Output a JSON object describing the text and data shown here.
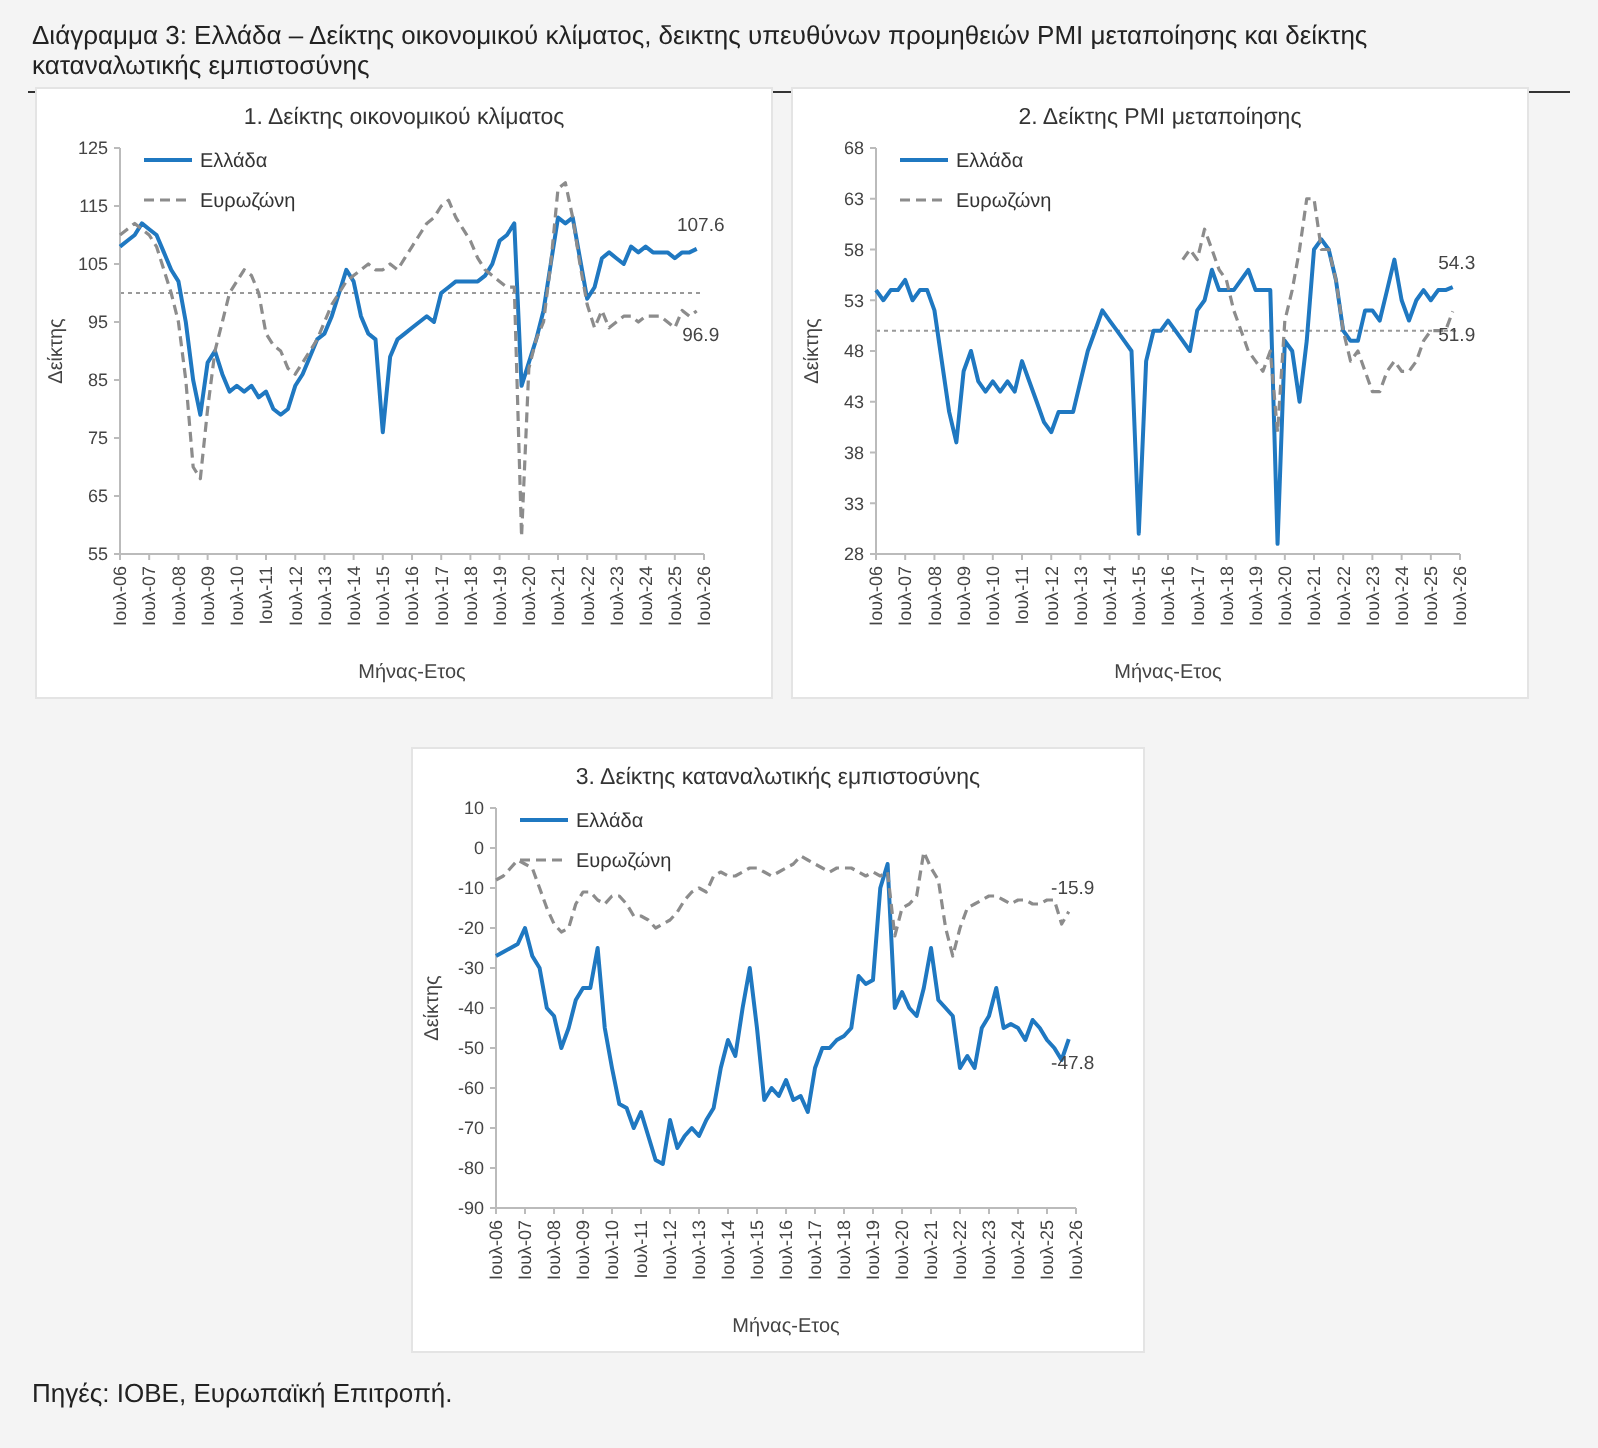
{
  "chart_data": [
    {
      "type": "other",
      "title": "Διάγραμμα 3: Ελλάδα – Δείκτης οικονομικού κλίματος, δεικτης υπευθύνων προμηθειών PMI μεταποίησης και δείκτης καταναλωτικής εμπιστοσύνης",
      "annotations": [
        "Πηγές: ΙΟΒΕ, Ευρωπαϊκή Επιτροπή."
      ]
    },
    {
      "type": "line",
      "title": "1. Δείκτης οικονομικού κλίματος",
      "xlabel": "Μήνας-Ετος",
      "ylabel": "Δείκτης",
      "legend": "top left",
      "grid": false,
      "x": [
        "2006-07",
        "2006-10",
        "2007-01",
        "2007-04",
        "2007-07",
        "2007-10",
        "2008-01",
        "2008-04",
        "2008-07",
        "2008-10",
        "2009-01",
        "2009-04",
        "2009-07",
        "2009-10",
        "2010-01",
        "2010-04",
        "2010-07",
        "2010-10",
        "2011-01",
        "2011-04",
        "2011-07",
        "2011-10",
        "2012-01",
        "2012-04",
        "2012-07",
        "2012-10",
        "2013-01",
        "2013-04",
        "2013-07",
        "2013-10",
        "2014-01",
        "2014-04",
        "2014-07",
        "2014-10",
        "2015-01",
        "2015-04",
        "2015-07",
        "2015-10",
        "2016-01",
        "2016-04",
        "2016-07",
        "2016-10",
        "2017-01",
        "2017-04",
        "2017-07",
        "2017-10",
        "2018-01",
        "2018-04",
        "2018-07",
        "2018-10",
        "2019-01",
        "2019-04",
        "2019-07",
        "2019-10",
        "2020-01",
        "2020-04",
        "2020-07",
        "2020-10",
        "2021-01",
        "2021-04",
        "2021-07",
        "2021-10",
        "2022-01",
        "2022-04",
        "2022-07",
        "2022-10",
        "2023-01",
        "2023-04",
        "2023-07",
        "2023-10",
        "2024-01",
        "2024-04",
        "2024-07",
        "2024-10",
        "2025-01",
        "2025-04",
        "2025-07",
        "2025-10",
        "2026-01",
        "2026-04"
      ],
      "xlim": [
        "2006-07",
        "2026-07"
      ],
      "xticks": [
        {
          "value": "2006-07",
          "label": "Ιουλ-06"
        },
        {
          "value": "2007-07",
          "label": "Ιουλ-07"
        },
        {
          "value": "2008-07",
          "label": "Ιουλ-08"
        },
        {
          "value": "2009-07",
          "label": "Ιουλ-09"
        },
        {
          "value": "2010-07",
          "label": "Ιουλ-10"
        },
        {
          "value": "2011-07",
          "label": "Ιουλ-11"
        },
        {
          "value": "2012-07",
          "label": "Ιουλ-12"
        },
        {
          "value": "2013-07",
          "label": "Ιουλ-13"
        },
        {
          "value": "2014-07",
          "label": "Ιουλ-14"
        },
        {
          "value": "2015-07",
          "label": "Ιουλ-15"
        },
        {
          "value": "2016-07",
          "label": "Ιουλ-16"
        },
        {
          "value": "2017-07",
          "label": "Ιουλ-17"
        },
        {
          "value": "2018-07",
          "label": "Ιουλ-18"
        },
        {
          "value": "2019-07",
          "label": "Ιουλ-19"
        },
        {
          "value": "2020-07",
          "label": "Ιουλ-20"
        },
        {
          "value": "2021-07",
          "label": "Ιουλ-21"
        },
        {
          "value": "2022-07",
          "label": "Ιουλ-22"
        },
        {
          "value": "2023-07",
          "label": "Ιουλ-23"
        },
        {
          "value": "2024-07",
          "label": "Ιουλ-24"
        },
        {
          "value": "2025-07",
          "label": "Ιουλ-25"
        },
        {
          "value": "2026-07",
          "label": "Ιουλ-26"
        }
      ],
      "ylim": [
        55,
        125
      ],
      "yticks": [
        55,
        65,
        75,
        85,
        95,
        105,
        115,
        125
      ],
      "ref_lines": [
        {
          "axis": "y",
          "value": 100,
          "color": "#999999",
          "line_style": "dotted"
        }
      ],
      "series": [
        {
          "name": "Ελλάδα",
          "color": "#1f78c1",
          "line_style": "solid",
          "values": [
            108,
            109,
            110,
            112,
            111,
            110,
            107,
            104,
            102,
            95,
            85,
            79,
            88,
            90,
            86,
            83,
            84,
            83,
            84,
            82,
            83,
            80,
            79,
            80,
            84,
            86,
            89,
            92,
            93,
            96,
            100,
            104,
            102,
            96,
            93,
            92,
            76,
            89,
            92,
            93,
            94,
            95,
            96,
            95,
            100,
            101,
            102,
            102,
            102,
            102,
            103,
            105,
            109,
            110,
            112,
            84,
            88,
            92,
            97,
            105,
            113,
            112,
            113,
            106,
            99,
            101,
            106,
            107,
            106,
            105,
            108,
            107,
            108,
            107,
            107,
            107,
            106,
            107,
            107,
            107.6
          ]
        },
        {
          "name": "Ευρωζώνη",
          "color": "#8c8c8c",
          "line_style": "dashed",
          "values": [
            110,
            111,
            112,
            111,
            110,
            108,
            104,
            100,
            95,
            85,
            70,
            68,
            80,
            90,
            95,
            100,
            102,
            104,
            103,
            100,
            93,
            91,
            90,
            87,
            86,
            88,
            90,
            92,
            95,
            98,
            100,
            102,
            103,
            104,
            105,
            104,
            104,
            105,
            104,
            106,
            108,
            110,
            112,
            113,
            115,
            116,
            113,
            111,
            109,
            106,
            104,
            103,
            102,
            101,
            101,
            58,
            87,
            92,
            95,
            105,
            118,
            119,
            113,
            105,
            98,
            94,
            97,
            94,
            95,
            96,
            96,
            95,
            96,
            96,
            96,
            95,
            94,
            97,
            96,
            96.9
          ]
        }
      ],
      "annotations": [
        {
          "text": "107.6",
          "x": "2026-04",
          "y": 107.6
        },
        {
          "text": "96.9",
          "x": "2026-04",
          "y": 96.9
        }
      ]
    },
    {
      "type": "line",
      "title": "2. Δείκτης PMI μεταποίησης",
      "xlabel": "Μήνας-Ετος",
      "ylabel": "Δείκτης",
      "legend": "top left",
      "grid": false,
      "x": [
        "2006-07",
        "2006-10",
        "2007-01",
        "2007-04",
        "2007-07",
        "2007-10",
        "2008-01",
        "2008-04",
        "2008-07",
        "2008-10",
        "2009-01",
        "2009-04",
        "2009-07",
        "2009-10",
        "2010-01",
        "2010-04",
        "2010-07",
        "2010-10",
        "2011-01",
        "2011-04",
        "2011-07",
        "2011-10",
        "2012-01",
        "2012-04",
        "2012-07",
        "2012-10",
        "2013-01",
        "2013-04",
        "2013-07",
        "2013-10",
        "2014-01",
        "2014-04",
        "2014-07",
        "2014-10",
        "2015-01",
        "2015-04",
        "2015-07",
        "2015-10",
        "2016-01",
        "2016-04",
        "2016-07",
        "2016-10",
        "2017-01",
        "2017-04",
        "2017-07",
        "2017-10",
        "2018-01",
        "2018-04",
        "2018-07",
        "2018-10",
        "2019-01",
        "2019-04",
        "2019-07",
        "2019-10",
        "2020-01",
        "2020-04",
        "2020-07",
        "2020-10",
        "2021-01",
        "2021-04",
        "2021-07",
        "2021-10",
        "2022-01",
        "2022-04",
        "2022-07",
        "2022-10",
        "2023-01",
        "2023-04",
        "2023-07",
        "2023-10",
        "2024-01",
        "2024-04",
        "2024-07",
        "2024-10",
        "2025-01",
        "2025-04",
        "2025-07",
        "2025-10",
        "2026-01",
        "2026-04"
      ],
      "xlim": [
        "2006-07",
        "2026-07"
      ],
      "xticks": [
        {
          "value": "2006-07",
          "label": "Ιουλ-06"
        },
        {
          "value": "2007-07",
          "label": "Ιουλ-07"
        },
        {
          "value": "2008-07",
          "label": "Ιουλ-08"
        },
        {
          "value": "2009-07",
          "label": "Ιουλ-09"
        },
        {
          "value": "2010-07",
          "label": "Ιουλ-10"
        },
        {
          "value": "2011-07",
          "label": "Ιουλ-11"
        },
        {
          "value": "2012-07",
          "label": "Ιουλ-12"
        },
        {
          "value": "2013-07",
          "label": "Ιουλ-13"
        },
        {
          "value": "2014-07",
          "label": "Ιουλ-14"
        },
        {
          "value": "2015-07",
          "label": "Ιουλ-15"
        },
        {
          "value": "2016-07",
          "label": "Ιουλ-16"
        },
        {
          "value": "2017-07",
          "label": "Ιουλ-17"
        },
        {
          "value": "2018-07",
          "label": "Ιουλ-18"
        },
        {
          "value": "2019-07",
          "label": "Ιουλ-19"
        },
        {
          "value": "2020-07",
          "label": "Ιουλ-20"
        },
        {
          "value": "2021-07",
          "label": "Ιουλ-21"
        },
        {
          "value": "2022-07",
          "label": "Ιουλ-22"
        },
        {
          "value": "2023-07",
          "label": "Ιουλ-23"
        },
        {
          "value": "2024-07",
          "label": "Ιουλ-24"
        },
        {
          "value": "2025-07",
          "label": "Ιουλ-25"
        },
        {
          "value": "2026-07",
          "label": "Ιουλ-26"
        }
      ],
      "ylim": [
        28,
        68
      ],
      "yticks": [
        28,
        33,
        38,
        43,
        48,
        53,
        58,
        63,
        68
      ],
      "ref_lines": [
        {
          "axis": "y",
          "value": 50,
          "color": "#999999",
          "line_style": "dotted"
        }
      ],
      "series": [
        {
          "name": "Ελλάδα",
          "color": "#1f78c1",
          "line_style": "solid",
          "values": [
            54,
            53,
            54,
            54,
            55,
            53,
            54,
            54,
            52,
            47,
            42,
            39,
            46,
            48,
            45,
            44,
            45,
            44,
            45,
            44,
            47,
            45,
            43,
            41,
            40,
            42,
            42,
            42,
            45,
            48,
            50,
            52,
            51,
            50,
            49,
            48,
            30,
            47,
            50,
            50,
            51,
            50,
            49,
            48,
            52,
            53,
            56,
            54,
            54,
            54,
            55,
            56,
            54,
            54,
            54,
            29,
            49,
            48,
            43,
            49,
            58,
            59,
            58,
            55,
            50,
            49,
            49,
            52,
            52,
            51,
            54,
            57,
            53,
            51,
            53,
            54,
            53,
            54,
            54,
            54.3
          ]
        },
        {
          "name": "Ευρωζώνη",
          "color": "#8c8c8c",
          "line_style": "dashed",
          "values": [
            null,
            null,
            null,
            null,
            null,
            null,
            null,
            null,
            null,
            null,
            null,
            null,
            null,
            null,
            null,
            null,
            null,
            null,
            null,
            null,
            null,
            null,
            null,
            null,
            null,
            null,
            null,
            null,
            null,
            null,
            null,
            null,
            null,
            null,
            null,
            null,
            null,
            null,
            null,
            null,
            null,
            null,
            57,
            58,
            57,
            60,
            58,
            56,
            55,
            52,
            50,
            48,
            47,
            46,
            48,
            40,
            51,
            54,
            58,
            63,
            63,
            58,
            58,
            55,
            50,
            47,
            48,
            46,
            44,
            44,
            46,
            47,
            46,
            46,
            47,
            49,
            50,
            50,
            50,
            51.9
          ]
        }
      ],
      "annotations": [
        {
          "text": "54.3",
          "x": "2026-04",
          "y": 54.3
        },
        {
          "text": "51.9",
          "x": "2026-04",
          "y": 51.9
        }
      ]
    },
    {
      "type": "line",
      "title": "3. Δείκτης καταναλωτικής εμπιστοσύνης",
      "xlabel": "Μήνας-Ετος",
      "ylabel": "Δείκτης",
      "legend": "top left",
      "grid": false,
      "x": [
        "2006-07",
        "2006-10",
        "2007-01",
        "2007-04",
        "2007-07",
        "2007-10",
        "2008-01",
        "2008-04",
        "2008-07",
        "2008-10",
        "2009-01",
        "2009-04",
        "2009-07",
        "2009-10",
        "2010-01",
        "2010-04",
        "2010-07",
        "2010-10",
        "2011-01",
        "2011-04",
        "2011-07",
        "2011-10",
        "2012-01",
        "2012-04",
        "2012-07",
        "2012-10",
        "2013-01",
        "2013-04",
        "2013-07",
        "2013-10",
        "2014-01",
        "2014-04",
        "2014-07",
        "2014-10",
        "2015-01",
        "2015-04",
        "2015-07",
        "2015-10",
        "2016-01",
        "2016-04",
        "2016-07",
        "2016-10",
        "2017-01",
        "2017-04",
        "2017-07",
        "2017-10",
        "2018-01",
        "2018-04",
        "2018-07",
        "2018-10",
        "2019-01",
        "2019-04",
        "2019-07",
        "2019-10",
        "2020-01",
        "2020-04",
        "2020-07",
        "2020-10",
        "2021-01",
        "2021-04",
        "2021-07",
        "2021-10",
        "2022-01",
        "2022-04",
        "2022-07",
        "2022-10",
        "2023-01",
        "2023-04",
        "2023-07",
        "2023-10",
        "2024-01",
        "2024-04",
        "2024-07",
        "2024-10",
        "2025-01",
        "2025-04",
        "2025-07",
        "2025-10",
        "2026-01",
        "2026-04"
      ],
      "xlim": [
        "2006-07",
        "2026-07"
      ],
      "xticks": [
        {
          "value": "2006-07",
          "label": "Ιουλ-06"
        },
        {
          "value": "2007-07",
          "label": "Ιουλ-07"
        },
        {
          "value": "2008-07",
          "label": "Ιουλ-08"
        },
        {
          "value": "2009-07",
          "label": "Ιουλ-09"
        },
        {
          "value": "2010-07",
          "label": "Ιουλ-10"
        },
        {
          "value": "2011-07",
          "label": "Ιουλ-11"
        },
        {
          "value": "2012-07",
          "label": "Ιουλ-12"
        },
        {
          "value": "2013-07",
          "label": "Ιουλ-13"
        },
        {
          "value": "2014-07",
          "label": "Ιουλ-14"
        },
        {
          "value": "2015-07",
          "label": "Ιουλ-15"
        },
        {
          "value": "2016-07",
          "label": "Ιουλ-16"
        },
        {
          "value": "2017-07",
          "label": "Ιουλ-17"
        },
        {
          "value": "2018-07",
          "label": "Ιουλ-18"
        },
        {
          "value": "2019-07",
          "label": "Ιουλ-19"
        },
        {
          "value": "2020-07",
          "label": "Ιουλ-20"
        },
        {
          "value": "2021-07",
          "label": "Ιουλ-21"
        },
        {
          "value": "2022-07",
          "label": "Ιουλ-22"
        },
        {
          "value": "2023-07",
          "label": "Ιουλ-23"
        },
        {
          "value": "2024-07",
          "label": "Ιουλ-24"
        },
        {
          "value": "2025-07",
          "label": "Ιουλ-25"
        },
        {
          "value": "2026-07",
          "label": "Ιουλ-26"
        }
      ],
      "ylim": [
        -90,
        10
      ],
      "yticks": [
        -90,
        -80,
        -70,
        -60,
        -50,
        -40,
        -30,
        -20,
        -10,
        0,
        10
      ],
      "series": [
        {
          "name": "Ελλάδα",
          "color": "#1f78c1",
          "line_style": "solid",
          "values": [
            -27,
            -26,
            -25,
            -24,
            -20,
            -27,
            -30,
            -40,
            -42,
            -50,
            -45,
            -38,
            -35,
            -35,
            -25,
            -45,
            -55,
            -64,
            -65,
            -70,
            -66,
            -72,
            -78,
            -79,
            -68,
            -75,
            -72,
            -70,
            -72,
            -68,
            -65,
            -55,
            -48,
            -52,
            -40,
            -30,
            -45,
            -63,
            -60,
            -62,
            -58,
            -63,
            -62,
            -66,
            -55,
            -50,
            -50,
            -48,
            -47,
            -45,
            -32,
            -34,
            -33,
            -10,
            -4,
            -40,
            -36,
            -40,
            -42,
            -35,
            -25,
            -38,
            -40,
            -42,
            -55,
            -52,
            -55,
            -45,
            -42,
            -35,
            -45,
            -44,
            -45,
            -48,
            -43,
            -45,
            -48,
            -50,
            -53,
            -47.8
          ]
        },
        {
          "name": "Ευρωζώνη",
          "color": "#8c8c8c",
          "line_style": "dashed",
          "values": [
            -8,
            -7,
            -5,
            -3,
            -4,
            -5,
            -10,
            -15,
            -19,
            -21,
            -20,
            -14,
            -11,
            -11,
            -13,
            -14,
            -12,
            -12,
            -14,
            -17,
            -17,
            -18,
            -20,
            -19,
            -18,
            -16,
            -13,
            -11,
            -10,
            -11,
            -7,
            -6,
            -7,
            -7,
            -6,
            -5,
            -5,
            -6,
            -7,
            -6,
            -5,
            -4,
            -2,
            -3,
            -4,
            -5,
            -6,
            -5,
            -5,
            -5,
            -6,
            -7,
            -6,
            -7,
            -6,
            -22,
            -15,
            -14,
            -12,
            -1,
            -5,
            -8,
            -20,
            -27,
            -20,
            -15,
            -14,
            -13,
            -12,
            -12,
            -13,
            -14,
            -13,
            -13,
            -14,
            -14,
            -13,
            -13,
            -19,
            -15.9
          ]
        }
      ],
      "annotations": [
        {
          "text": "-15.9",
          "x": "2026-04",
          "y": -15.9
        },
        {
          "text": "-47.8",
          "x": "2026-04",
          "y": -47.8
        }
      ]
    }
  ]
}
